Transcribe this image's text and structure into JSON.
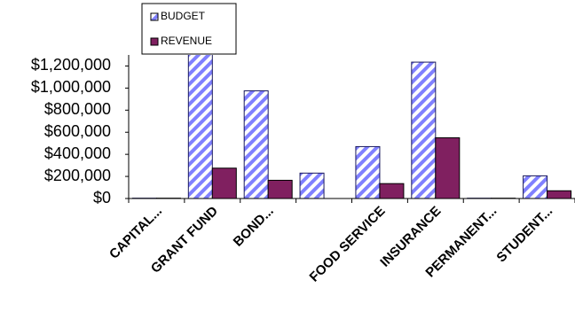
{
  "chart_data": {
    "type": "bar",
    "categories": [
      "CAPITAL...",
      "GRANT FUND",
      "BOND...",
      null,
      "FOOD SERVICE",
      "INSURANCE",
      "PERMANENT...",
      "STUDENT..."
    ],
    "series": [
      {
        "name": "BUDGET",
        "color": "#8080ff",
        "pattern": "diagonal-hatch",
        "values": [
          3000,
          1350000,
          975000,
          230000,
          470000,
          1235000,
          3000,
          205000
        ]
      },
      {
        "name": "REVENUE",
        "color": "#802060",
        "values": [
          3000,
          275000,
          165000,
          0,
          135000,
          550000,
          3000,
          70000
        ]
      }
    ],
    "ylim": [
      0,
      1300000
    ],
    "yticks": [
      {
        "value": 0,
        "label": "$0"
      },
      {
        "value": 200000,
        "label": "$200,000"
      },
      {
        "value": 400000,
        "label": "$400,000"
      },
      {
        "value": 600000,
        "label": "$600,000"
      },
      {
        "value": 800000,
        "label": "$800,000"
      },
      {
        "value": 1000000,
        "label": "$1,000,000"
      },
      {
        "value": 1200000,
        "label": "$1,200,000"
      }
    ],
    "grid": false
  }
}
